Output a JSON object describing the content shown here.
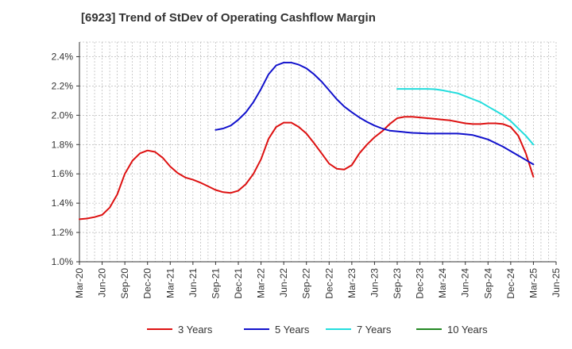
{
  "chart_data": {
    "type": "line",
    "title": "[6923]  Trend of StDev of Operating Cashflow Margin",
    "xlabel": "",
    "ylabel": "",
    "ylim": [
      1.0,
      2.5
    ],
    "yticks": [
      1.0,
      1.2,
      1.4,
      1.6,
      1.8,
      2.0,
      2.2,
      2.4
    ],
    "ytick_labels": [
      "1.0%",
      "1.2%",
      "1.4%",
      "1.6%",
      "1.8%",
      "2.0%",
      "2.2%",
      "2.4%"
    ],
    "categories": [
      "Mar-20",
      "Jun-20",
      "Sep-20",
      "Dec-20",
      "Mar-21",
      "Jun-21",
      "Sep-21",
      "Dec-21",
      "Mar-22",
      "Jun-22",
      "Sep-22",
      "Dec-22",
      "Mar-23",
      "Jun-23",
      "Sep-23",
      "Dec-23",
      "Mar-24",
      "Jun-24",
      "Sep-24",
      "Dec-24",
      "Mar-25",
      "Jun-25"
    ],
    "grid": true,
    "legend_position": "bottom",
    "series": [
      {
        "name": "3 Years",
        "color": "#dd1111",
        "x": [
          "2020-03",
          "2020-04",
          "2020-05",
          "2020-06",
          "2020-07",
          "2020-08",
          "2020-09",
          "2020-10",
          "2020-11",
          "2020-12",
          "2021-01",
          "2021-02",
          "2021-03",
          "2021-04",
          "2021-05",
          "2021-06",
          "2021-07",
          "2021-08",
          "2021-09",
          "2021-10",
          "2021-11",
          "2021-12",
          "2022-01",
          "2022-02",
          "2022-03",
          "2022-04",
          "2022-05",
          "2022-06",
          "2022-07",
          "2022-08",
          "2022-09",
          "2022-10",
          "2022-11",
          "2022-12",
          "2023-01",
          "2023-02",
          "2023-03",
          "2023-04",
          "2023-05",
          "2023-06",
          "2023-07",
          "2023-08",
          "2023-09",
          "2023-10",
          "2023-11",
          "2023-12",
          "2024-01",
          "2024-02",
          "2024-03",
          "2024-04",
          "2024-05",
          "2024-06",
          "2024-07",
          "2024-08",
          "2024-09",
          "2024-10",
          "2024-11",
          "2024-12",
          "2025-01",
          "2025-02",
          "2025-03"
        ],
        "values": [
          1.29,
          1.295,
          1.305,
          1.32,
          1.37,
          1.46,
          1.6,
          1.69,
          1.74,
          1.76,
          1.75,
          1.71,
          1.65,
          1.605,
          1.575,
          1.56,
          1.54,
          1.515,
          1.49,
          1.475,
          1.47,
          1.485,
          1.53,
          1.6,
          1.7,
          1.84,
          1.92,
          1.95,
          1.95,
          1.92,
          1.875,
          1.81,
          1.74,
          1.67,
          1.635,
          1.63,
          1.66,
          1.74,
          1.8,
          1.85,
          1.89,
          1.94,
          1.98,
          1.99,
          1.99,
          1.985,
          1.98,
          1.975,
          1.97,
          1.965,
          1.955,
          1.945,
          1.94,
          1.94,
          1.945,
          1.945,
          1.94,
          1.92,
          1.86,
          1.74,
          1.58
        ]
      },
      {
        "name": "5 Years",
        "color": "#1111cc",
        "x": [
          "2021-09",
          "2021-10",
          "2021-11",
          "2021-12",
          "2022-01",
          "2022-02",
          "2022-03",
          "2022-04",
          "2022-05",
          "2022-06",
          "2022-07",
          "2022-08",
          "2022-09",
          "2022-10",
          "2022-11",
          "2022-12",
          "2023-01",
          "2023-02",
          "2023-03",
          "2023-04",
          "2023-05",
          "2023-06",
          "2023-07",
          "2023-08",
          "2023-09",
          "2023-10",
          "2023-11",
          "2023-12",
          "2024-01",
          "2024-02",
          "2024-03",
          "2024-04",
          "2024-05",
          "2024-06",
          "2024-07",
          "2024-08",
          "2024-09",
          "2024-10",
          "2024-11",
          "2024-12",
          "2025-01",
          "2025-02",
          "2025-03"
        ],
        "values": [
          1.9,
          1.91,
          1.93,
          1.97,
          2.02,
          2.09,
          2.18,
          2.28,
          2.34,
          2.36,
          2.36,
          2.345,
          2.32,
          2.28,
          2.23,
          2.17,
          2.11,
          2.06,
          2.02,
          1.985,
          1.955,
          1.93,
          1.91,
          1.895,
          1.89,
          1.885,
          1.88,
          1.878,
          1.875,
          1.875,
          1.875,
          1.875,
          1.875,
          1.87,
          1.865,
          1.85,
          1.835,
          1.81,
          1.785,
          1.755,
          1.725,
          1.695,
          1.665
        ]
      },
      {
        "name": "7 Years",
        "color": "#22dddd",
        "x": [
          "2023-09",
          "2023-10",
          "2023-11",
          "2023-12",
          "2024-01",
          "2024-02",
          "2024-03",
          "2024-04",
          "2024-05",
          "2024-06",
          "2024-07",
          "2024-08",
          "2024-09",
          "2024-10",
          "2024-11",
          "2024-12",
          "2025-01",
          "2025-02",
          "2025-03"
        ],
        "values": [
          2.18,
          2.18,
          2.18,
          2.18,
          2.18,
          2.178,
          2.17,
          2.16,
          2.15,
          2.13,
          2.11,
          2.09,
          2.06,
          2.03,
          2.0,
          1.96,
          1.91,
          1.86,
          1.8
        ]
      },
      {
        "name": "10 Years",
        "color": "#228822",
        "x": [],
        "values": []
      }
    ]
  }
}
